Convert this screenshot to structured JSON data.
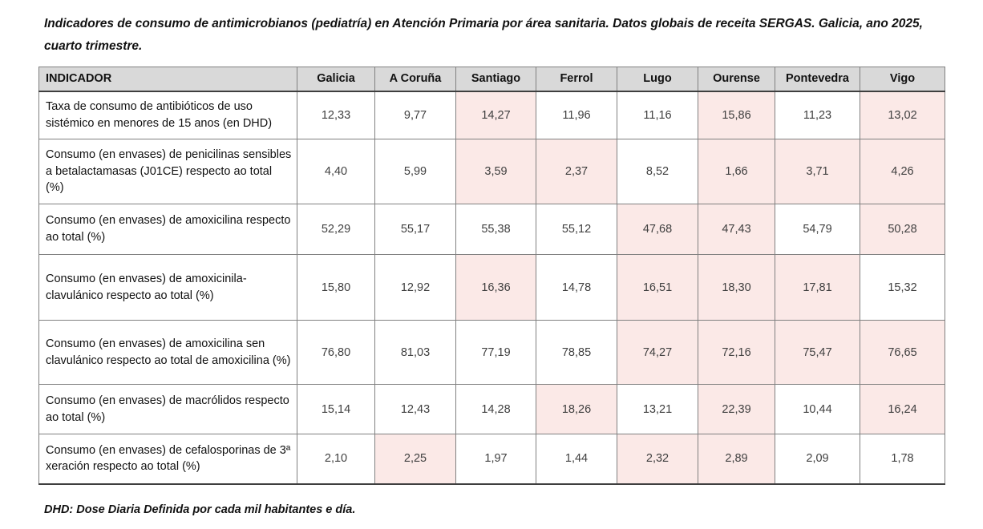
{
  "document": {
    "title": "Indicadores de consumo de antimicrobianos (pediatría) en Atención Primaria por área sanitaria. Datos globais de receita SERGAS. Galicia, ano 2025, cuarto trimestre.",
    "footnote": "DHD: Dose Diaria Definida por cada mil habitantes e día."
  },
  "colors": {
    "header_bg": "#d9d9d9",
    "highlight_bg": "#fbe9e7",
    "grid_border": "#808080",
    "strong_border": "#3f3f3f"
  },
  "table": {
    "header": [
      "INDICADOR",
      "Galicia",
      "A Coruña",
      "Santiago",
      "Ferrol",
      "Lugo",
      "Ourense",
      "Pontevedra",
      "Vigo"
    ],
    "rows": [
      {
        "indicator": "Taxa de consumo de antibióticos de uso sistémico en menores de 15 anos (en DHD)",
        "values": [
          "12,33",
          "9,77",
          "14,27",
          "11,96",
          "11,16",
          "15,86",
          "11,23",
          "13,02"
        ],
        "highlighted": [
          false,
          false,
          true,
          false,
          false,
          true,
          false,
          true
        ]
      },
      {
        "indicator": "Consumo (en envases) de penicilinas sensibles a betalactamasas (J01CE) respecto ao total (%)",
        "values": [
          "4,40",
          "5,99",
          "3,59",
          "2,37",
          "8,52",
          "1,66",
          "3,71",
          "4,26"
        ],
        "highlighted": [
          false,
          false,
          true,
          true,
          false,
          true,
          true,
          true
        ]
      },
      {
        "indicator": "Consumo (en envases) de amoxicilina respecto ao total (%)",
        "values": [
          "52,29",
          "55,17",
          "55,38",
          "55,12",
          "47,68",
          "47,43",
          "54,79",
          "50,28"
        ],
        "highlighted": [
          false,
          false,
          false,
          false,
          true,
          true,
          false,
          true
        ]
      },
      {
        "indicator": "Consumo (en envases) de amoxicinila-clavulánico respecto ao total (%)",
        "values": [
          "15,80",
          "12,92",
          "16,36",
          "14,78",
          "16,51",
          "18,30",
          "17,81",
          "15,32"
        ],
        "highlighted": [
          false,
          false,
          true,
          false,
          true,
          true,
          true,
          false
        ]
      },
      {
        "indicator": "Consumo (en envases) de amoxicilina sen clavulánico respecto ao total de amoxicilina (%)",
        "values": [
          "76,80",
          "81,03",
          "77,19",
          "78,85",
          "74,27",
          "72,16",
          "75,47",
          "76,65"
        ],
        "highlighted": [
          false,
          false,
          false,
          false,
          true,
          true,
          true,
          true
        ]
      },
      {
        "indicator": "Consumo (en envases) de macrólidos respecto ao total (%)",
        "values": [
          "15,14",
          "12,43",
          "14,28",
          "18,26",
          "13,21",
          "22,39",
          "10,44",
          "16,24"
        ],
        "highlighted": [
          false,
          false,
          false,
          true,
          false,
          true,
          false,
          true
        ]
      },
      {
        "indicator": "Consumo (en envases) de cefalosporinas de 3ª xeración respecto ao total (%)",
        "values": [
          "2,10",
          "2,25",
          "1,97",
          "1,44",
          "2,32",
          "2,89",
          "2,09",
          "1,78"
        ],
        "highlighted": [
          false,
          true,
          false,
          false,
          true,
          true,
          false,
          false
        ]
      }
    ]
  }
}
